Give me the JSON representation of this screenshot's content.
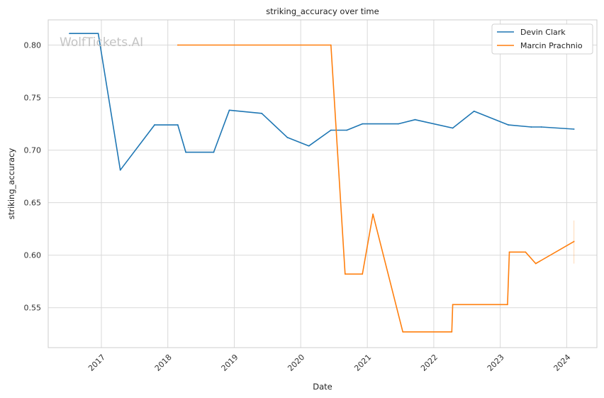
{
  "chart_data": {
    "type": "line",
    "title": "striking_accuracy over time",
    "xlabel": "Date",
    "ylabel": "striking_accuracy",
    "watermark": "WolfTickets.AI",
    "grid": true,
    "legend_position": "top-right",
    "xlim": [
      "2016-03-15",
      "2024-06-15"
    ],
    "ylim": [
      0.512,
      0.824
    ],
    "x_ticks": [
      "2017",
      "2018",
      "2019",
      "2020",
      "2021",
      "2022",
      "2023",
      "2024"
    ],
    "y_ticks": [
      "0.55",
      "0.60",
      "0.65",
      "0.70",
      "0.75",
      "0.80"
    ],
    "series": [
      {
        "name": "Devin Clark",
        "color": "#1f77b4",
        "points": [
          {
            "x": "2016-07-10",
            "y": 0.811
          },
          {
            "x": "2016-12-15",
            "y": 0.811
          },
          {
            "x": "2017-04-15",
            "y": 0.681
          },
          {
            "x": "2017-10-20",
            "y": 0.724
          },
          {
            "x": "2018-02-25",
            "y": 0.724
          },
          {
            "x": "2018-04-10",
            "y": 0.698
          },
          {
            "x": "2018-09-10",
            "y": 0.698
          },
          {
            "x": "2018-12-05",
            "y": 0.738
          },
          {
            "x": "2019-06-01",
            "y": 0.735
          },
          {
            "x": "2019-10-20",
            "y": 0.712
          },
          {
            "x": "2020-02-15",
            "y": 0.704
          },
          {
            "x": "2020-06-15",
            "y": 0.719
          },
          {
            "x": "2020-09-10",
            "y": 0.719
          },
          {
            "x": "2020-12-05",
            "y": 0.725
          },
          {
            "x": "2021-06-20",
            "y": 0.725
          },
          {
            "x": "2021-09-20",
            "y": 0.729
          },
          {
            "x": "2022-04-15",
            "y": 0.721
          },
          {
            "x": "2022-08-10",
            "y": 0.737
          },
          {
            "x": "2023-02-15",
            "y": 0.724
          },
          {
            "x": "2023-06-20",
            "y": 0.722
          },
          {
            "x": "2023-08-15",
            "y": 0.722
          },
          {
            "x": "2024-02-10",
            "y": 0.72
          }
        ]
      },
      {
        "name": "Marcin Prachnio",
        "color": "#ff7f0e",
        "points": [
          {
            "x": "2018-02-25",
            "y": 0.8
          },
          {
            "x": "2020-06-15",
            "y": 0.8
          },
          {
            "x": "2020-09-01",
            "y": 0.582
          },
          {
            "x": "2020-12-05",
            "y": 0.582
          },
          {
            "x": "2021-02-01",
            "y": 0.639
          },
          {
            "x": "2021-07-15",
            "y": 0.527
          },
          {
            "x": "2022-04-10",
            "y": 0.527
          },
          {
            "x": "2022-04-15",
            "y": 0.553
          },
          {
            "x": "2023-02-10",
            "y": 0.553
          },
          {
            "x": "2023-02-20",
            "y": 0.603
          },
          {
            "x": "2023-05-20",
            "y": 0.603
          },
          {
            "x": "2023-07-15",
            "y": 0.592
          },
          {
            "x": "2024-02-10",
            "y": 0.613
          }
        ],
        "error_bar": {
          "x": "2024-02-10",
          "y_low": 0.592,
          "y_high": 0.633
        }
      }
    ]
  }
}
